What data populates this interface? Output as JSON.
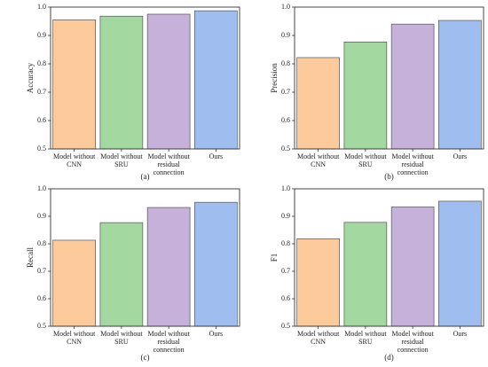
{
  "chart_data": [
    {
      "type": "bar",
      "y_label": "Accuracy",
      "caption": "(a)",
      "categories": [
        "Model without CNN",
        "Model without SRU",
        "Model without residual connection",
        "Ours"
      ],
      "values": [
        0.955,
        0.968,
        0.975,
        0.987
      ],
      "colors": [
        "#fdcb9b",
        "#a3d9a0",
        "#c5b1d9",
        "#a0bdf0"
      ],
      "ylim": [
        0.5,
        1
      ],
      "yticks": [
        0.5,
        0.6,
        0.7,
        0.8,
        0.9,
        {
          "value": 1,
          "label": "1.0"
        }
      ]
    },
    {
      "type": "bar",
      "y_label": "Precision",
      "caption": "(b)",
      "categories": [
        "Model without CNN",
        "Model without SRU",
        "Model without residual connection",
        "Ours"
      ],
      "values": [
        0.822,
        0.877,
        0.94,
        0.953
      ],
      "colors": [
        "#fdcb9b",
        "#a3d9a0",
        "#c5b1d9",
        "#a0bdf0"
      ],
      "ylim": [
        0.5,
        1
      ],
      "yticks": [
        0.5,
        0.6,
        0.7,
        0.8,
        0.9,
        {
          "value": 1,
          "label": "1.0"
        }
      ]
    },
    {
      "type": "bar",
      "y_label": "Recall",
      "caption": "(c)",
      "categories": [
        "Model without CNN",
        "Model without SRU",
        "Model without residual connection",
        "Ours"
      ],
      "values": [
        0.813,
        0.877,
        0.932,
        0.951
      ],
      "colors": [
        "#fdcb9b",
        "#a3d9a0",
        "#c5b1d9",
        "#a0bdf0"
      ],
      "ylim": [
        0.5,
        1
      ],
      "yticks": [
        0.5,
        0.6,
        0.7,
        0.8,
        0.9,
        {
          "value": 1,
          "label": "1.0"
        }
      ]
    },
    {
      "type": "bar",
      "y_label": "F1",
      "caption": "(d)",
      "categories": [
        "Model without CNN",
        "Model without SRU",
        "Model without residual connection",
        "Ours"
      ],
      "values": [
        0.818,
        0.878,
        0.934,
        0.955
      ],
      "colors": [
        "#fdcb9b",
        "#a3d9a0",
        "#c5b1d9",
        "#a0bdf0"
      ],
      "ylim": [
        0.5,
        1
      ],
      "yticks": [
        0.5,
        0.6,
        0.7,
        0.8,
        0.9,
        {
          "value": 1,
          "label": "1.0"
        }
      ]
    }
  ]
}
